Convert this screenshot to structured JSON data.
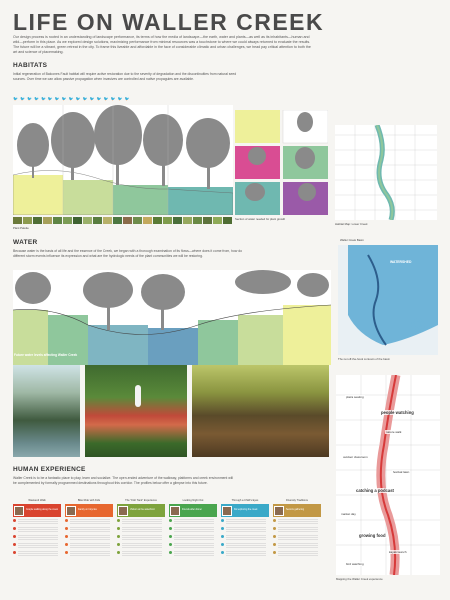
{
  "poster": {
    "title": "LIFE ON WALLER CREEK",
    "intro": "Our design process is rooted in an understanding of landscape performance, its terms of how the media of landscape—the earth, water and plants—as well as its inhabitants—human and wild—perform in this place. As we explored design solutions, maximizing performance from minimal resources was a touchstone to where we could always returned to evaluate the results. The future will be a vibrant, green retreat in the city. To frame this liveable and affordable in the face of considerable climatic and urban challenges, we head pay critical attention to both the art and science of placemaking."
  },
  "habitats": {
    "heading": "HABITATS",
    "body": "Initial regeneration of Balcones Fault habitat will require active restoration due to the severity of degradation and the discontinuities from natural seed sources. Over time we can allow passive propagation when invasives are controlled and native propagules are available.",
    "plant_palette_label": "Plant Palette",
    "transect_label": "Section of water needed for plant growth",
    "map_caption": "Habitat Map: Lower Creek"
  },
  "water": {
    "heading": "WATER",
    "body": "Because water is the basis of all life and the essence of the Creek, we began with a thorough examination of its flows—where does it come from, how do different storm events influence its expression and what are the hydrologic needs of the plant communities we will be restoring.",
    "section_caption": "Future water levels affecting Waller Creek",
    "map_title": "Waller Creek Basin",
    "map_label": "WATERSHED",
    "map_caption": "The net off-the-hook contours of the basin"
  },
  "human": {
    "heading": "HUMAN EXPERIENCE",
    "body": "Waller Creek is to be a fantastic place to play, learn and socialize. The open-ended adventure of the walkway, platforms and creek environment will be complemented by formally programmed destinations throughout this corridor. The profiles below offer a glimpse into this future.",
    "map_caption": "Mapping the Waller Creek experience",
    "personas": [
      {
        "head": "Weekend Walk",
        "text": "Couple walking along the creek",
        "color": "#d9442f"
      },
      {
        "head": "Bike Ride with Kids",
        "text": "Family on bicycles",
        "color": "#e7672f"
      },
      {
        "head": "The \"Fish Tank\" Experience",
        "text": "Visitors at the waterfront",
        "color": "#7ea33c"
      },
      {
        "head": "Looking Night Out",
        "text": "Friends after dinner",
        "color": "#4aa54e"
      },
      {
        "head": "Through a Child's Eyes",
        "text": "Kid exploring the creek",
        "color": "#3aa9c8"
      },
      {
        "head": "Diversity Traditions",
        "text": "Seniors gathering",
        "color": "#c29845"
      }
    ],
    "timeline_labels": [
      "people watching",
      "catching a podcast",
      "growing food",
      "plaza seating",
      "nature walk",
      "outdoor classroom",
      "festival lawn",
      "market day",
      "kayak launch",
      "bird watching"
    ]
  },
  "colors": {
    "yellow": "#eef09a",
    "green": "#8fc79c",
    "teal": "#6fb8b0",
    "blue": "#4e8fb5",
    "pink": "#d94d93",
    "purple": "#9a5aa8",
    "red": "#d73a3a",
    "tree": "#8a8a8a"
  }
}
